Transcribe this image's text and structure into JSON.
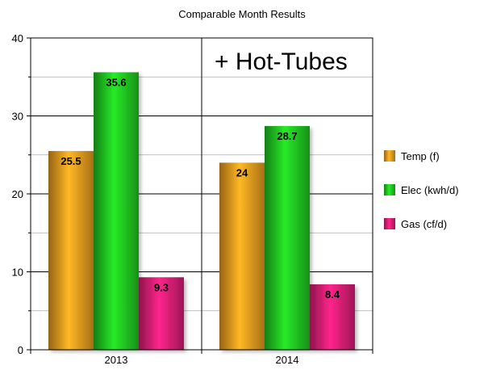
{
  "chart_data": {
    "type": "bar",
    "title": "Comparable Month Results",
    "categories": [
      "2013",
      "2014"
    ],
    "series": [
      {
        "name": "Temp (f)",
        "values": [
          25.5,
          24
        ],
        "color": "#f0a020"
      },
      {
        "name": "Elec (kwh/d)",
        "values": [
          35.6,
          28.7
        ],
        "color": "#22cc22"
      },
      {
        "name": "Gas (cf/d)",
        "values": [
          9.3,
          8.4
        ],
        "color": "#e0207a"
      }
    ],
    "ylim": [
      0,
      40
    ],
    "yticks": [
      "0",
      "10",
      "20",
      "30",
      "40"
    ],
    "grid": true,
    "legend_position": "right",
    "annotation": "+ Hot-Tubes",
    "data_labels": [
      "25.5",
      "35.6",
      "9.3",
      "24",
      "28.7",
      "8.4"
    ]
  }
}
